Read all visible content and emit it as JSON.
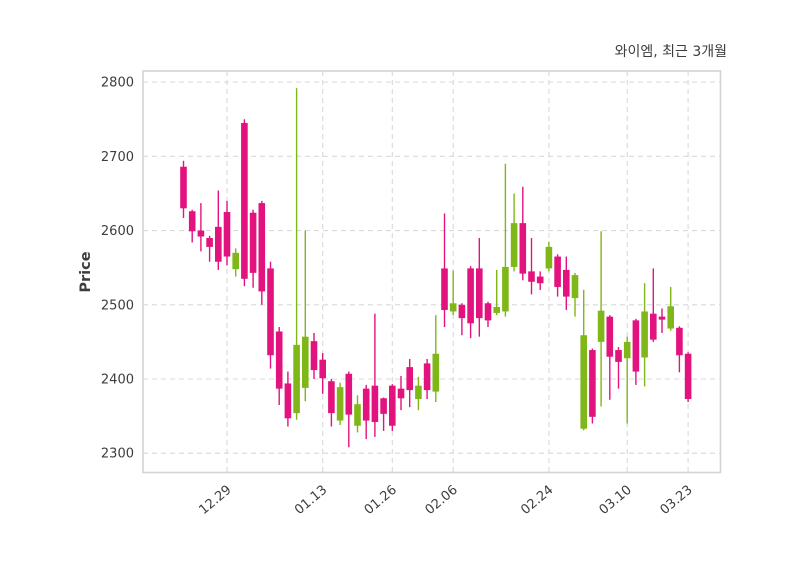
{
  "page": {
    "background": "#ffffff"
  },
  "chart_data": {
    "type": "candlestick",
    "title": "와이엠, 최근 3개월",
    "ylabel": "Price",
    "xlabel": "",
    "grid": "dashed",
    "legend": "none",
    "ylim": [
      2274,
      2815
    ],
    "y_ticks": [
      2300,
      2400,
      2500,
      2600,
      2700,
      2800
    ],
    "x_ticks": [
      {
        "index": 5,
        "label": "12.29"
      },
      {
        "index": 16,
        "label": "01.13"
      },
      {
        "index": 24,
        "label": "01.26"
      },
      {
        "index": 31,
        "label": "02.06"
      },
      {
        "index": 42,
        "label": "02.24"
      },
      {
        "index": 51,
        "label": "03.10"
      },
      {
        "index": 58,
        "label": "03.23"
      }
    ],
    "colors": {
      "up": "#e2127e",
      "down": "#7fb718",
      "grid": "#d9d9d9",
      "spine": "#d4d4d4",
      "text": "#3d3d3d"
    },
    "candles": [
      {
        "open": 2630,
        "high": 2694,
        "low": 2617,
        "close": 2686
      },
      {
        "open": 2599,
        "high": 2628,
        "low": 2584,
        "close": 2626
      },
      {
        "open": 2592,
        "high": 2637,
        "low": 2572,
        "close": 2600
      },
      {
        "open": 2578,
        "high": 2593,
        "low": 2558,
        "close": 2590
      },
      {
        "open": 2558,
        "high": 2654,
        "low": 2547,
        "close": 2605
      },
      {
        "open": 2565,
        "high": 2640,
        "low": 2553,
        "close": 2625
      },
      {
        "open": 2570,
        "high": 2576,
        "low": 2538,
        "close": 2548
      },
      {
        "open": 2535,
        "high": 2750,
        "low": 2525,
        "close": 2745
      },
      {
        "open": 2543,
        "high": 2628,
        "low": 2523,
        "close": 2624
      },
      {
        "open": 2518,
        "high": 2640,
        "low": 2500,
        "close": 2637
      },
      {
        "open": 2432,
        "high": 2558,
        "low": 2414,
        "close": 2549
      },
      {
        "open": 2387,
        "high": 2470,
        "low": 2365,
        "close": 2464
      },
      {
        "open": 2347,
        "high": 2410,
        "low": 2336,
        "close": 2394
      },
      {
        "open": 2446,
        "high": 2792,
        "low": 2345,
        "close": 2354
      },
      {
        "open": 2457,
        "high": 2600,
        "low": 2370,
        "close": 2388
      },
      {
        "open": 2412,
        "high": 2462,
        "low": 2400,
        "close": 2451
      },
      {
        "open": 2401,
        "high": 2435,
        "low": 2380,
        "close": 2426
      },
      {
        "open": 2354,
        "high": 2400,
        "low": 2336,
        "close": 2397
      },
      {
        "open": 2389,
        "high": 2395,
        "low": 2338,
        "close": 2344
      },
      {
        "open": 2352,
        "high": 2410,
        "low": 2308,
        "close": 2407
      },
      {
        "open": 2366,
        "high": 2378,
        "low": 2328,
        "close": 2337
      },
      {
        "open": 2344,
        "high": 2392,
        "low": 2319,
        "close": 2387
      },
      {
        "open": 2342,
        "high": 2488,
        "low": 2322,
        "close": 2391
      },
      {
        "open": 2353,
        "high": 2375,
        "low": 2330,
        "close": 2374
      },
      {
        "open": 2337,
        "high": 2393,
        "low": 2330,
        "close": 2391
      },
      {
        "open": 2374,
        "high": 2404,
        "low": 2358,
        "close": 2387
      },
      {
        "open": 2385,
        "high": 2427,
        "low": 2362,
        "close": 2416
      },
      {
        "open": 2391,
        "high": 2403,
        "low": 2358,
        "close": 2373
      },
      {
        "open": 2385,
        "high": 2427,
        "low": 2373,
        "close": 2421
      },
      {
        "open": 2434,
        "high": 2486,
        "low": 2369,
        "close": 2383
      },
      {
        "open": 2493,
        "high": 2623,
        "low": 2470,
        "close": 2549
      },
      {
        "open": 2502,
        "high": 2546,
        "low": 2486,
        "close": 2491
      },
      {
        "open": 2482,
        "high": 2502,
        "low": 2459,
        "close": 2500
      },
      {
        "open": 2475,
        "high": 2552,
        "low": 2455,
        "close": 2549
      },
      {
        "open": 2482,
        "high": 2590,
        "low": 2457,
        "close": 2549
      },
      {
        "open": 2479,
        "high": 2504,
        "low": 2470,
        "close": 2502
      },
      {
        "open": 2497,
        "high": 2547,
        "low": 2486,
        "close": 2489
      },
      {
        "open": 2551,
        "high": 2690,
        "low": 2484,
        "close": 2491
      },
      {
        "open": 2610,
        "high": 2650,
        "low": 2545,
        "close": 2551
      },
      {
        "open": 2542,
        "high": 2659,
        "low": 2533,
        "close": 2610
      },
      {
        "open": 2531,
        "high": 2590,
        "low": 2514,
        "close": 2545
      },
      {
        "open": 2529,
        "high": 2545,
        "low": 2520,
        "close": 2538
      },
      {
        "open": 2578,
        "high": 2585,
        "low": 2545,
        "close": 2549
      },
      {
        "open": 2524,
        "high": 2568,
        "low": 2511,
        "close": 2565
      },
      {
        "open": 2511,
        "high": 2565,
        "low": 2493,
        "close": 2547
      },
      {
        "open": 2540,
        "high": 2543,
        "low": 2484,
        "close": 2509
      },
      {
        "open": 2459,
        "high": 2520,
        "low": 2331,
        "close": 2333
      },
      {
        "open": 2349,
        "high": 2441,
        "low": 2340,
        "close": 2439
      },
      {
        "open": 2492,
        "high": 2599,
        "low": 2363,
        "close": 2450
      },
      {
        "open": 2430,
        "high": 2486,
        "low": 2372,
        "close": 2484
      },
      {
        "open": 2423,
        "high": 2443,
        "low": 2387,
        "close": 2439
      },
      {
        "open": 2450,
        "high": 2457,
        "low": 2340,
        "close": 2428
      },
      {
        "open": 2410,
        "high": 2481,
        "low": 2392,
        "close": 2479
      },
      {
        "open": 2491,
        "high": 2529,
        "low": 2390,
        "close": 2429
      },
      {
        "open": 2453,
        "high": 2549,
        "low": 2450,
        "close": 2488
      },
      {
        "open": 2480,
        "high": 2495,
        "low": 2462,
        "close": 2484
      },
      {
        "open": 2498,
        "high": 2524,
        "low": 2465,
        "close": 2468
      },
      {
        "open": 2432,
        "high": 2471,
        "low": 2409,
        "close": 2469
      },
      {
        "open": 2373,
        "high": 2436,
        "low": 2369,
        "close": 2434
      }
    ]
  }
}
